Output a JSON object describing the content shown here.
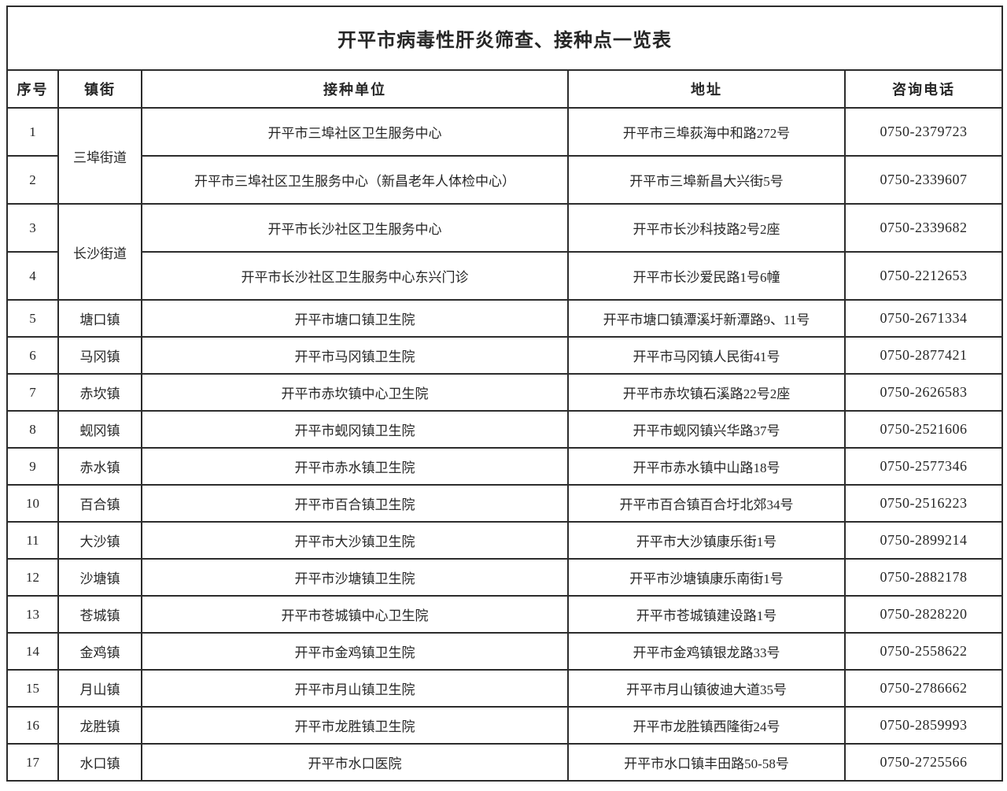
{
  "title": "开平市病毒性肝炎筛查、接种点一览表",
  "table": {
    "headers": [
      "序号",
      "镇街",
      "接种单位",
      "地址",
      "咨询电话"
    ],
    "rows": [
      {
        "no": "1",
        "town": "三埠街道",
        "town_rowspan": 2,
        "unit": "开平市三埠社区卫生服务中心",
        "address": "开平市三埠荻海中和路272号",
        "phone": "0750-2379723"
      },
      {
        "no": "2",
        "town": null,
        "unit": "开平市三埠社区卫生服务中心（新昌老年人体检中心）",
        "address": "开平市三埠新昌大兴街5号",
        "phone": "0750-2339607"
      },
      {
        "no": "3",
        "town": "长沙街道",
        "town_rowspan": 2,
        "unit": "开平市长沙社区卫生服务中心",
        "address": "开平市长沙科技路2号2座",
        "phone": "0750-2339682"
      },
      {
        "no": "4",
        "town": null,
        "unit": "开平市长沙社区卫生服务中心东兴门诊",
        "address": "开平市长沙爱民路1号6幢",
        "phone": "0750-2212653"
      },
      {
        "no": "5",
        "town": "塘口镇",
        "unit": "开平市塘口镇卫生院",
        "address": "开平市塘口镇潭溪圩新潭路9、11号",
        "phone": "0750-2671334"
      },
      {
        "no": "6",
        "town": "马冈镇",
        "unit": "开平市马冈镇卫生院",
        "address": "开平市马冈镇人民街41号",
        "phone": "0750-2877421"
      },
      {
        "no": "7",
        "town": "赤坎镇",
        "unit": "开平市赤坎镇中心卫生院",
        "address": "开平市赤坎镇石溪路22号2座",
        "phone": "0750-2626583"
      },
      {
        "no": "8",
        "town": "蚬冈镇",
        "unit": "开平市蚬冈镇卫生院",
        "address": "开平市蚬冈镇兴华路37号",
        "phone": "0750-2521606"
      },
      {
        "no": "9",
        "town": "赤水镇",
        "unit": "开平市赤水镇卫生院",
        "address": "开平市赤水镇中山路18号",
        "phone": "0750-2577346"
      },
      {
        "no": "10",
        "town": "百合镇",
        "unit": "开平市百合镇卫生院",
        "address": "开平市百合镇百合圩北郊34号",
        "phone": "0750-2516223"
      },
      {
        "no": "11",
        "town": "大沙镇",
        "unit": "开平市大沙镇卫生院",
        "address": "开平市大沙镇康乐街1号",
        "phone": "0750-2899214"
      },
      {
        "no": "12",
        "town": "沙塘镇",
        "unit": "开平市沙塘镇卫生院",
        "address": "开平市沙塘镇康乐南街1号",
        "phone": "0750-2882178"
      },
      {
        "no": "13",
        "town": "苍城镇",
        "unit": "开平市苍城镇中心卫生院",
        "address": "开平市苍城镇建设路1号",
        "phone": "0750-2828220"
      },
      {
        "no": "14",
        "town": "金鸡镇",
        "unit": "开平市金鸡镇卫生院",
        "address": "开平市金鸡镇银龙路33号",
        "phone": "0750-2558622"
      },
      {
        "no": "15",
        "town": "月山镇",
        "unit": "开平市月山镇卫生院",
        "address": "开平市月山镇彼迪大道35号",
        "phone": "0750-2786662"
      },
      {
        "no": "16",
        "town": "龙胜镇",
        "unit": "开平市龙胜镇卫生院",
        "address": "开平市龙胜镇西隆街24号",
        "phone": "0750-2859993"
      },
      {
        "no": "17",
        "town": "水口镇",
        "unit": "开平市水口医院",
        "address": "开平市水口镇丰田路50-58号",
        "phone": "0750-2725566"
      }
    ]
  },
  "colors": {
    "text": "#262626",
    "border": "#2c2c2c",
    "background": "#ffffff"
  }
}
